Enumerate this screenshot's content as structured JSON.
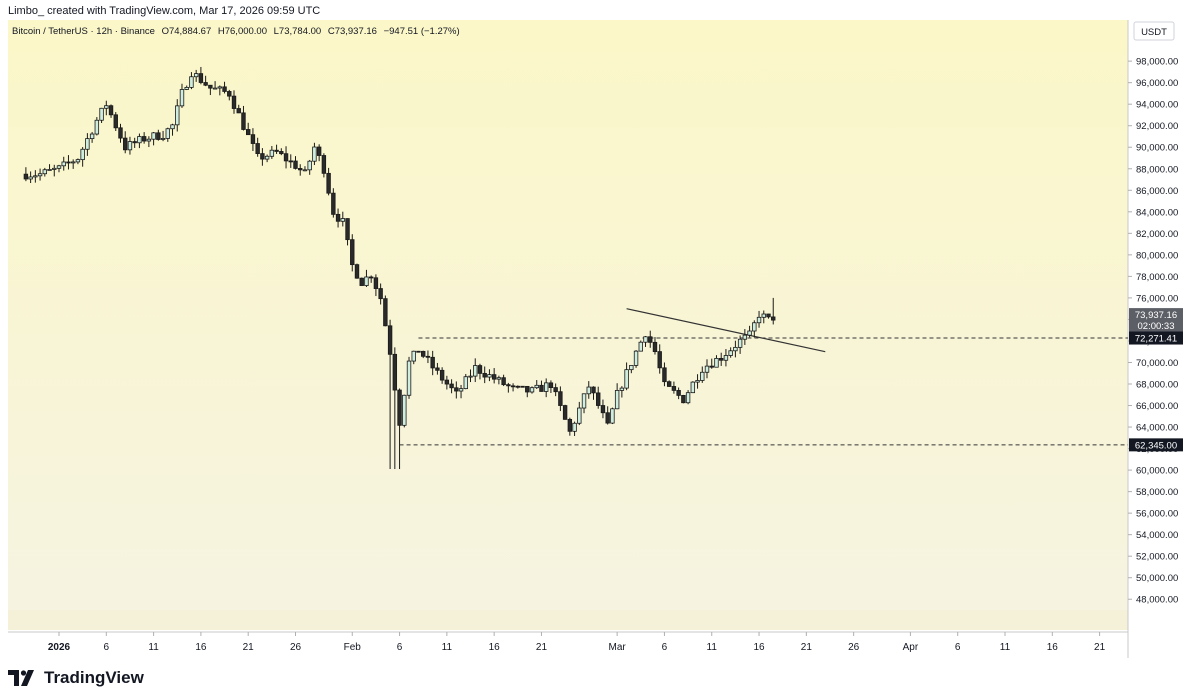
{
  "header": {
    "attribution": "Limbo_ created with TradingView.com, Mar 17, 2026 09:59 UTC"
  },
  "info": {
    "symbol": "Bitcoin / TetherUS · 12h · Binance",
    "open": "O74,884.67",
    "high": "H76,000.00",
    "low": "L73,784.00",
    "close": "C73,937.16",
    "change": "−947.51 (−1.27%)"
  },
  "currency": "USDT",
  "footer": {
    "brand": "TradingView"
  },
  "chart_data": {
    "type": "candlestick",
    "title": "Bitcoin / TetherUS · 12h · Binance",
    "ylim": [
      47000,
      99500
    ],
    "y_ticks": [
      "48,000.00",
      "50,000.00",
      "52,000.00",
      "54,000.00",
      "56,000.00",
      "58,000.00",
      "60,000.00",
      "62,000.00",
      "64,000.00",
      "66,000.00",
      "68,000.00",
      "70,000.00",
      "72,000.00",
      "74,000.00",
      "76,000.00",
      "78,000.00",
      "80,000.00",
      "82,000.00",
      "84,000.00",
      "86,000.00",
      "88,000.00",
      "90,000.00",
      "92,000.00",
      "94,000.00",
      "96,000.00",
      "98,000.00"
    ],
    "x_ticks": [
      {
        "label": "2026",
        "date": "2026-01-01",
        "bold": true
      },
      {
        "label": "6",
        "date": "2026-01-06"
      },
      {
        "label": "11",
        "date": "2026-01-11"
      },
      {
        "label": "16",
        "date": "2026-01-16"
      },
      {
        "label": "21",
        "date": "2026-01-21"
      },
      {
        "label": "26",
        "date": "2026-01-26"
      },
      {
        "label": "Feb",
        "date": "2026-02-01"
      },
      {
        "label": "6",
        "date": "2026-02-06"
      },
      {
        "label": "11",
        "date": "2026-02-11"
      },
      {
        "label": "16",
        "date": "2026-02-16"
      },
      {
        "label": "21",
        "date": "2026-02-21"
      },
      {
        "label": "Mar",
        "date": "2026-03-01"
      },
      {
        "label": "6",
        "date": "2026-03-06"
      },
      {
        "label": "11",
        "date": "2026-03-11"
      },
      {
        "label": "16",
        "date": "2026-03-16"
      },
      {
        "label": "21",
        "date": "2026-03-21"
      },
      {
        "label": "26",
        "date": "2026-03-26"
      },
      {
        "label": "Apr",
        "date": "2026-04-01"
      },
      {
        "label": "6",
        "date": "2026-04-06"
      },
      {
        "label": "11",
        "date": "2026-04-11"
      },
      {
        "label": "16",
        "date": "2026-04-16"
      },
      {
        "label": "21",
        "date": "2026-04-21"
      }
    ],
    "price_labels": [
      {
        "value": 73937.16,
        "text": "73,937.16",
        "countdown": "02:00:33"
      },
      {
        "value": 72271.41,
        "text": "72,271.41"
      },
      {
        "value": 62345.0,
        "text": "62,345.00"
      }
    ],
    "horizontal_lines": [
      {
        "value": 72271.41,
        "from": "2026-02-08"
      },
      {
        "value": 62345.0,
        "from": "2026-02-06"
      }
    ],
    "trendline": {
      "start": [
        "2026-03-02",
        75000
      ],
      "end": [
        "2026-03-23",
        71000
      ]
    },
    "anchors": [
      [
        "2025-12-28",
        87500
      ],
      [
        "2025-12-30",
        87500
      ],
      [
        "2026-01-01",
        88000
      ],
      [
        "2026-01-03",
        89000
      ],
      [
        "2026-01-05",
        92500
      ],
      [
        "2026-01-06",
        94000
      ],
      [
        "2026-01-08",
        90000
      ],
      [
        "2026-01-10",
        90800
      ],
      [
        "2026-01-12",
        91200
      ],
      [
        "2026-01-13",
        92000
      ],
      [
        "2026-01-14",
        95000
      ],
      [
        "2026-01-15",
        97000
      ],
      [
        "2026-01-17",
        95500
      ],
      [
        "2026-01-19",
        95000
      ],
      [
        "2026-01-20",
        93000
      ],
      [
        "2026-01-21",
        91000
      ],
      [
        "2026-01-22",
        89000
      ],
      [
        "2026-01-24",
        89500
      ],
      [
        "2026-01-26",
        88300
      ],
      [
        "2026-01-27",
        87500
      ],
      [
        "2026-01-28",
        90000
      ],
      [
        "2026-01-29",
        88000
      ],
      [
        "2026-01-30",
        84000
      ],
      [
        "2026-01-31",
        83000
      ],
      [
        "2026-02-01",
        79000
      ],
      [
        "2026-02-02",
        77500
      ],
      [
        "2026-02-03",
        78200
      ],
      [
        "2026-02-04",
        76000
      ],
      [
        "2026-02-05",
        71000
      ],
      [
        "2026-02-06",
        64500
      ],
      [
        "2026-02-07",
        70000
      ],
      [
        "2026-02-08",
        71200
      ],
      [
        "2026-02-10",
        69000
      ],
      [
        "2026-02-12",
        67000
      ],
      [
        "2026-02-14",
        69500
      ],
      [
        "2026-02-16",
        68500
      ],
      [
        "2026-02-18",
        67500
      ],
      [
        "2026-02-20",
        67300
      ],
      [
        "2026-02-22",
        68000
      ],
      [
        "2026-02-24",
        63500
      ],
      [
        "2026-02-26",
        67800
      ],
      [
        "2026-02-27",
        66000
      ],
      [
        "2026-02-28",
        64000
      ],
      [
        "2026-03-01",
        67000
      ],
      [
        "2026-03-03",
        71000
      ],
      [
        "2026-03-04",
        72800
      ],
      [
        "2026-03-05",
        71000
      ],
      [
        "2026-03-06",
        67800
      ],
      [
        "2026-03-08",
        66600
      ],
      [
        "2026-03-10",
        69500
      ],
      [
        "2026-03-12",
        70500
      ],
      [
        "2026-03-14",
        72000
      ],
      [
        "2026-03-15",
        72500
      ],
      [
        "2026-03-16",
        74500
      ],
      [
        "2026-03-17",
        73937
      ]
    ]
  }
}
